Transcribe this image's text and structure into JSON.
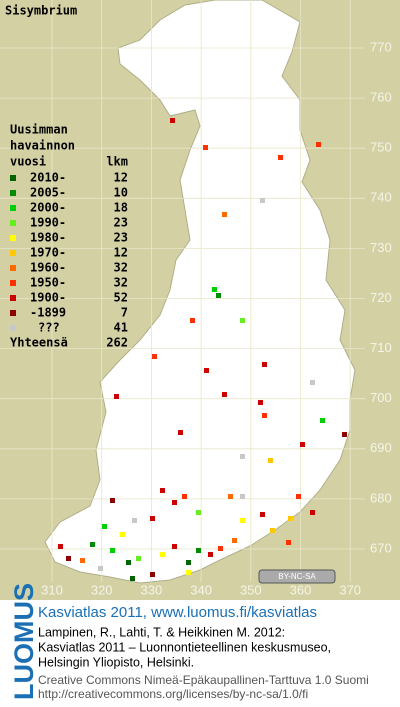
{
  "map": {
    "title": "Sisymbrium",
    "legend": {
      "heading": [
        "Uusimman",
        "havainnon",
        "vuosi"
      ],
      "count_heading": "lkm",
      "items": [
        {
          "label": "2010-",
          "count": 12,
          "color": "#006400"
        },
        {
          "label": "2005-",
          "count": 10,
          "color": "#008c00"
        },
        {
          "label": "2000-",
          "count": 18,
          "color": "#00d000"
        },
        {
          "label": "1990-",
          "count": 23,
          "color": "#66ee22"
        },
        {
          "label": "1980-",
          "count": 23,
          "color": "#ffff00"
        },
        {
          "label": "1970-",
          "count": 12,
          "color": "#ffc800"
        },
        {
          "label": "1960-",
          "count": 32,
          "color": "#ff6a00"
        },
        {
          "label": "1950-",
          "count": 32,
          "color": "#ff3000"
        },
        {
          "label": "1900-",
          "count": 52,
          "color": "#cc0000"
        },
        {
          "label": "-1899",
          "count": 7,
          "color": "#8b0000"
        },
        {
          "label": "???",
          "count": 41,
          "color": "#c8c8c8"
        }
      ],
      "total_label": "Yhteensä",
      "total": 262
    },
    "xticks": [
      310,
      320,
      330,
      340,
      350,
      360,
      370
    ],
    "yticks": [
      670,
      680,
      690,
      700,
      710,
      720,
      730,
      740,
      750,
      760,
      770
    ],
    "license_badge": "BY-NC-SA"
  },
  "footer": {
    "logo": "LUOMUS",
    "heading": "Kasviatlas 2011, www.luomus.fi/kasviatlas",
    "citation": [
      "Lampinen, R., Lahti, T. & Heikkinen M. 2012:",
      "Kasviatlas 2011 – Luonnontieteellinen keskusmuseo,",
      "Helsingin Yliopisto, Helsinki."
    ],
    "license": [
      "Creative Commons Nimeä-Epäkaupallinen-Tarttuva 1.0 Suomi",
      "http://creativecommons.org/licenses/by-nc-sa/1.0/fi"
    ]
  }
}
